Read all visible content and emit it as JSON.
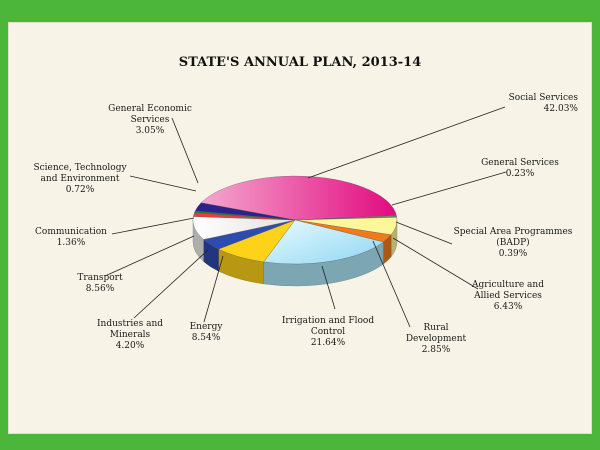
{
  "chart_data": {
    "type": "pie",
    "title": "STATE'S ANNUAL PLAN, 2013-14",
    "series": [
      {
        "name": "Social Services",
        "value": 42.03,
        "label": "42.03%",
        "color": "#e11382"
      },
      {
        "name": "General Services",
        "value": 0.23,
        "label": "0.23%",
        "color": "#e8e030"
      },
      {
        "name": "Special Area Programmes (BADP)",
        "value": 0.39,
        "label": "0.39%",
        "color": "#2aa7a2"
      },
      {
        "name": "Agriculture and Allied Services",
        "value": 6.43,
        "label": "6.43%",
        "color": "#fef79a"
      },
      {
        "name": "Rural Development",
        "value": 2.85,
        "label": "2.85%",
        "color": "#f07a1c"
      },
      {
        "name": "Irrigation and Flood Control",
        "value": 21.64,
        "label": "21.64%",
        "color": "#aee6f8"
      },
      {
        "name": "Energy",
        "value": 8.54,
        "label": "8.54%",
        "color": "#ffd21a"
      },
      {
        "name": "Industries and Minerals",
        "value": 4.2,
        "label": "4.20%",
        "color": "#2e4bb0"
      },
      {
        "name": "Transport",
        "value": 8.56,
        "label": "8.56%",
        "color": "#f3f1f1"
      },
      {
        "name": "Communication",
        "value": 1.36,
        "label": "1.36%",
        "color": "#f23a3a"
      },
      {
        "name": "Science, Technology and Environment",
        "value": 0.72,
        "label": "0.72%",
        "color": "#2c7a37"
      },
      {
        "name": "General Economic Services",
        "value": 3.05,
        "label": "3.05%",
        "color": "#2b238a"
      }
    ]
  }
}
